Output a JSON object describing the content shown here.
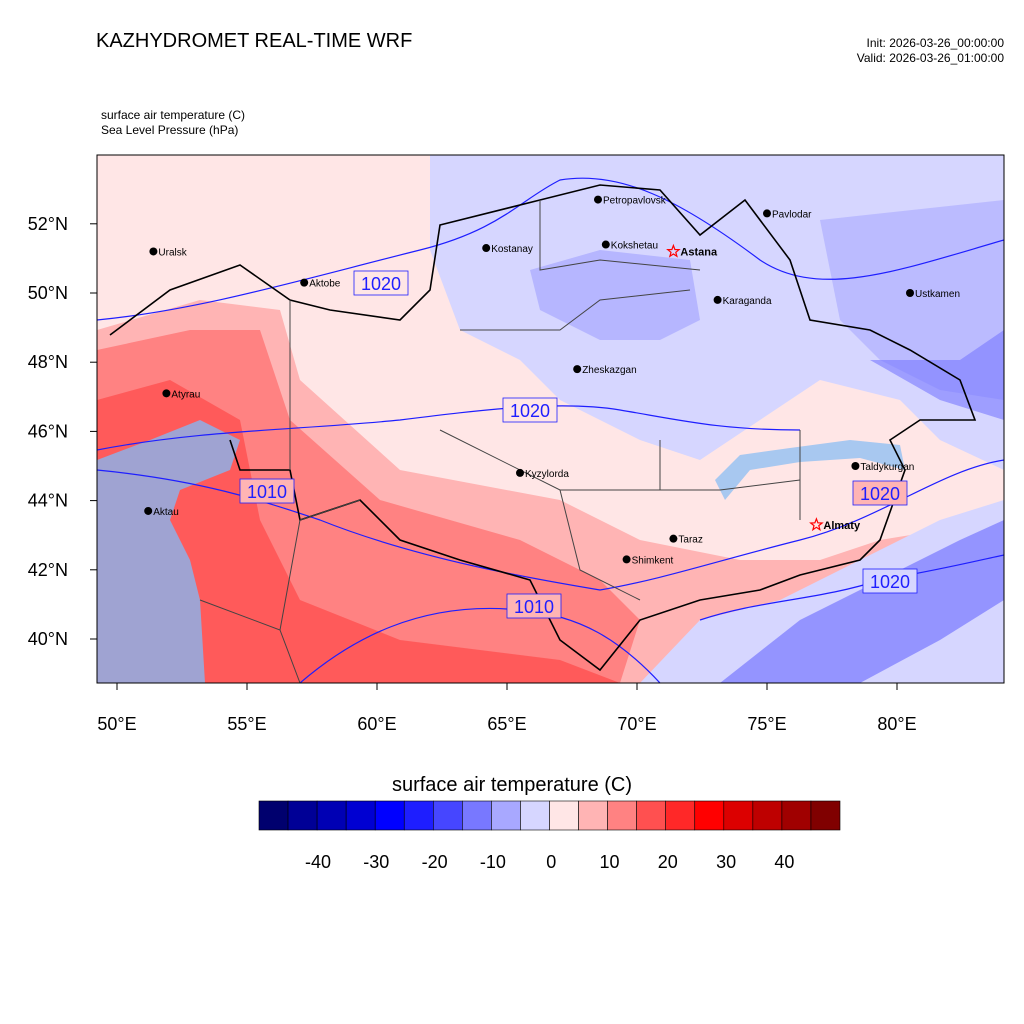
{
  "header": {
    "title": "KAZHYDROMET REAL-TIME WRF",
    "init": "Init: 2026-03-26_00:00:00",
    "valid": "Valid: 2026-03-26_01:00:00",
    "field1": "surface air temperature   (C)",
    "field2": "Sea Level Pressure   (hPa)"
  },
  "axes": {
    "lat_labels": [
      "52°N",
      "50°N",
      "48°N",
      "46°N",
      "44°N",
      "42°N",
      "40°N"
    ],
    "lon_labels": [
      "50°E",
      "55°E",
      "60°E",
      "65°E",
      "70°E",
      "75°E",
      "80°E"
    ]
  },
  "cities": [
    {
      "name": "Petropavlovsk",
      "lon": 68.5,
      "lat": 52.7
    },
    {
      "name": "Kostanay",
      "lon": 64.2,
      "lat": 51.3
    },
    {
      "name": "Kokshetau",
      "lon": 68.8,
      "lat": 51.4
    },
    {
      "name": "Pavlodar",
      "lon": 75.0,
      "lat": 52.3
    },
    {
      "name": "Uralsk",
      "lon": 51.4,
      "lat": 51.2
    },
    {
      "name": "Aktobe",
      "lon": 57.2,
      "lat": 50.3
    },
    {
      "name": "Ustkamen",
      "lon": 80.5,
      "lat": 50.0
    },
    {
      "name": "Karaganda",
      "lon": 73.1,
      "lat": 49.8
    },
    {
      "name": "Atyrau",
      "lon": 51.9,
      "lat": 47.1
    },
    {
      "name": "Zheskazgan",
      "lon": 67.7,
      "lat": 47.8
    },
    {
      "name": "Taldykurgan",
      "lon": 78.4,
      "lat": 45.0
    },
    {
      "name": "Aktau",
      "lon": 51.2,
      "lat": 43.7
    },
    {
      "name": "Kyzylorda",
      "lon": 65.5,
      "lat": 44.8
    },
    {
      "name": "Taraz",
      "lon": 71.4,
      "lat": 42.9
    },
    {
      "name": "Shimkent",
      "lon": 69.6,
      "lat": 42.3
    }
  ],
  "capitals": [
    {
      "name": "Astana",
      "lon": 71.4,
      "lat": 51.2
    },
    {
      "name": "Almaty",
      "lon": 76.9,
      "lat": 43.3
    }
  ],
  "isobar_labels": [
    "1020",
    "1020",
    "1010",
    "1010",
    "1020",
    "1020"
  ],
  "colorbar": {
    "title": "surface air temperature  (C)",
    "labels": [
      "-40",
      "-30",
      "-20",
      "-10",
      "0",
      "10",
      "20",
      "30",
      "40"
    ],
    "colors": [
      "#00006e",
      "#000096",
      "#0000b4",
      "#0000d2",
      "#0000ff",
      "#1e1eff",
      "#4646ff",
      "#7878ff",
      "#a8a8ff",
      "#d6d6ff",
      "#ffe6e6",
      "#ffb4b4",
      "#ff8282",
      "#ff5050",
      "#ff2828",
      "#ff0000",
      "#dc0000",
      "#be0000",
      "#a00000",
      "#800000"
    ]
  }
}
